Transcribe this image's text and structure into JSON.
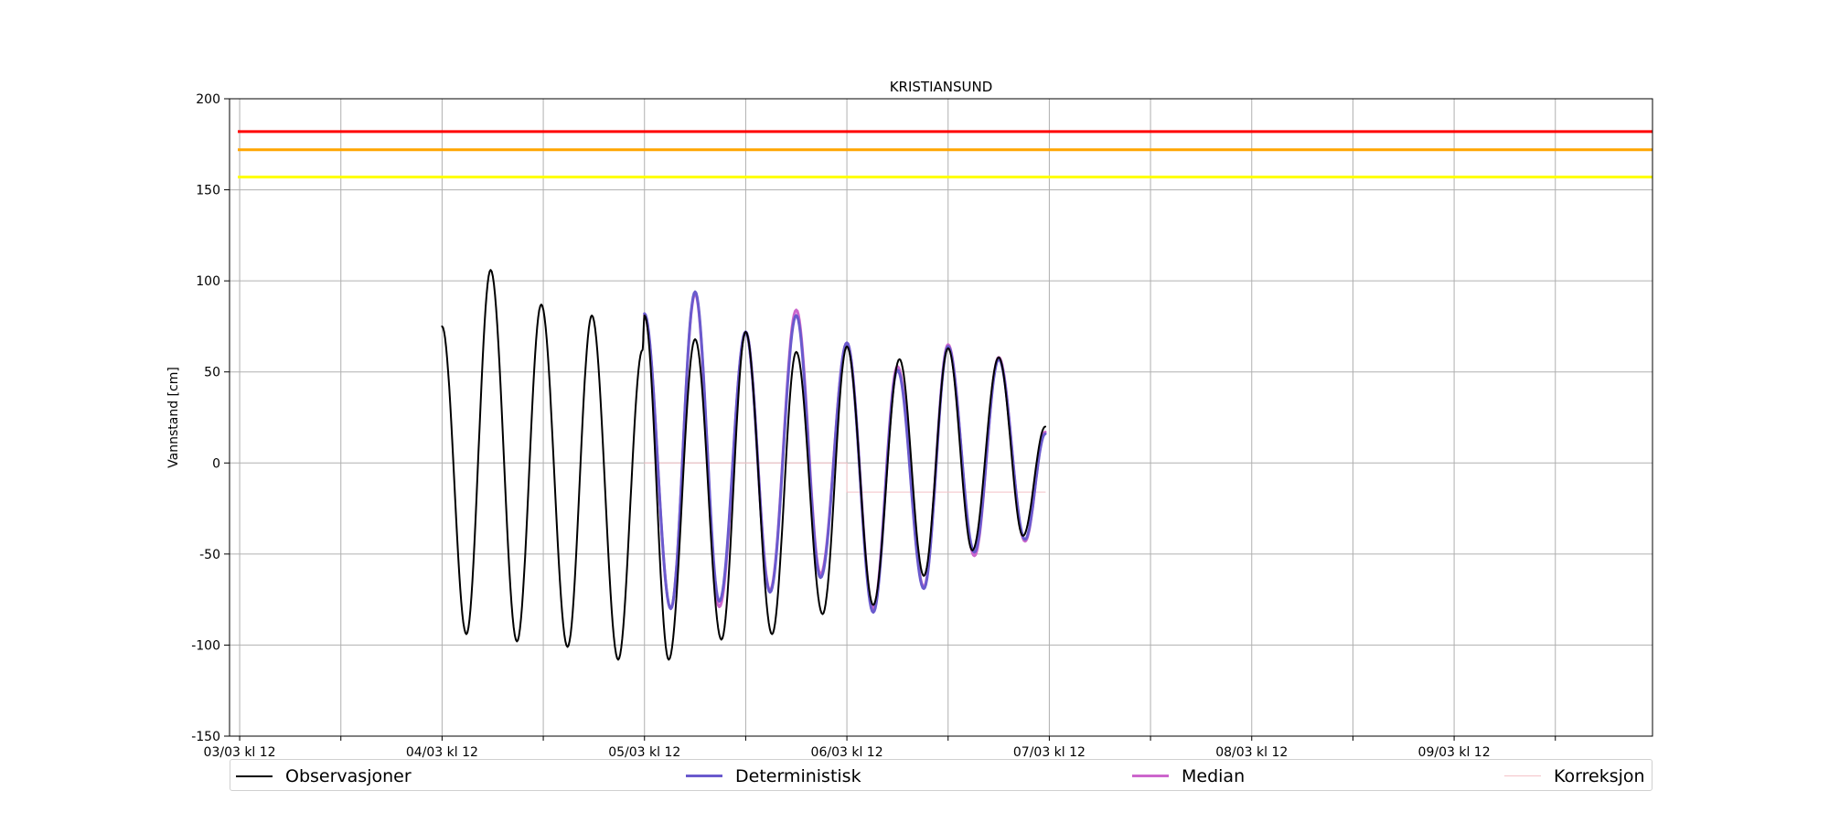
{
  "chart_data": {
    "type": "line",
    "title": "KRISTIANSUND",
    "xlabel": "",
    "ylabel": "Vannstand [cm]",
    "ylim": [
      -150,
      200
    ],
    "xlim_days": [
      3.45,
      10.48
    ],
    "x_ticks": [
      {
        "pos": 3.5,
        "label": "03/03 kl 12"
      },
      {
        "pos": 4.0,
        "label": ""
      },
      {
        "pos": 4.5,
        "label": "04/03 kl 12"
      },
      {
        "pos": 5.0,
        "label": ""
      },
      {
        "pos": 5.5,
        "label": "05/03 kl 12"
      },
      {
        "pos": 6.0,
        "label": ""
      },
      {
        "pos": 6.5,
        "label": "06/03 kl 12"
      },
      {
        "pos": 7.0,
        "label": ""
      },
      {
        "pos": 7.5,
        "label": "07/03 kl 12"
      },
      {
        "pos": 8.0,
        "label": ""
      },
      {
        "pos": 8.5,
        "label": "08/03 kl 12"
      },
      {
        "pos": 9.0,
        "label": ""
      },
      {
        "pos": 9.5,
        "label": "09/03 kl 12"
      },
      {
        "pos": 10.0,
        "label": ""
      }
    ],
    "y_ticks": [
      -150,
      -100,
      -50,
      0,
      50,
      100,
      150,
      200
    ],
    "grid": true,
    "legend_position": "bottom",
    "thresholds": [
      {
        "value": 182,
        "color": "#ff0000"
      },
      {
        "value": 172,
        "color": "#ffa500"
      },
      {
        "value": 157,
        "color": "#ffff00"
      }
    ],
    "series": [
      {
        "name": "Observasjoner",
        "color": "#000000",
        "linewidth": 2,
        "points": [
          [
            4.5,
            75
          ],
          [
            4.62,
            -94
          ],
          [
            4.74,
            106
          ],
          [
            4.87,
            -98
          ],
          [
            4.99,
            87
          ],
          [
            5.12,
            -101
          ],
          [
            5.24,
            81
          ],
          [
            5.37,
            -108
          ],
          [
            5.49,
            62
          ],
          [
            5.5,
            81
          ],
          [
            5.62,
            -108
          ],
          [
            5.75,
            68
          ],
          [
            5.88,
            -97
          ],
          [
            6.0,
            72
          ],
          [
            6.13,
            -94
          ],
          [
            6.25,
            61
          ],
          [
            6.38,
            -83
          ],
          [
            6.5,
            64
          ],
          [
            6.63,
            -78
          ],
          [
            6.76,
            57
          ],
          [
            6.88,
            -62
          ],
          [
            7.0,
            63
          ],
          [
            7.12,
            -48
          ],
          [
            7.25,
            58
          ],
          [
            7.37,
            -40
          ],
          [
            7.48,
            20
          ]
        ]
      },
      {
        "name": "Deterministisk",
        "color": "#6a5acd",
        "linewidth": 3,
        "points": [
          [
            5.5,
            82
          ],
          [
            5.63,
            -80
          ],
          [
            5.75,
            94
          ],
          [
            5.87,
            -76
          ],
          [
            6.0,
            72
          ],
          [
            6.12,
            -71
          ],
          [
            6.25,
            81
          ],
          [
            6.37,
            -63
          ],
          [
            6.5,
            66
          ],
          [
            6.63,
            -82
          ],
          [
            6.75,
            51
          ],
          [
            6.88,
            -69
          ],
          [
            7.0,
            64
          ],
          [
            7.13,
            -49
          ],
          [
            7.25,
            57
          ],
          [
            7.38,
            -42
          ],
          [
            7.48,
            16
          ]
        ]
      },
      {
        "name": "Median",
        "color": "#cc66cc",
        "linewidth": 3,
        "points": [
          [
            5.5,
            81
          ],
          [
            5.63,
            -80
          ],
          [
            5.75,
            93
          ],
          [
            5.87,
            -79
          ],
          [
            6.0,
            72
          ],
          [
            6.12,
            -70
          ],
          [
            6.25,
            84
          ],
          [
            6.37,
            -61
          ],
          [
            6.5,
            66
          ],
          [
            6.63,
            -80
          ],
          [
            6.75,
            53
          ],
          [
            6.88,
            -68
          ],
          [
            7.0,
            65
          ],
          [
            7.13,
            -51
          ],
          [
            7.25,
            58
          ],
          [
            7.38,
            -43
          ],
          [
            7.48,
            17
          ]
        ]
      },
      {
        "name": "Korreksjon",
        "color": "#f4c2c8",
        "linewidth": 1,
        "points": [
          [
            5.5,
            0
          ],
          [
            6.5,
            0
          ],
          [
            6.5,
            -16
          ],
          [
            7.48,
            -16
          ]
        ]
      }
    ]
  }
}
